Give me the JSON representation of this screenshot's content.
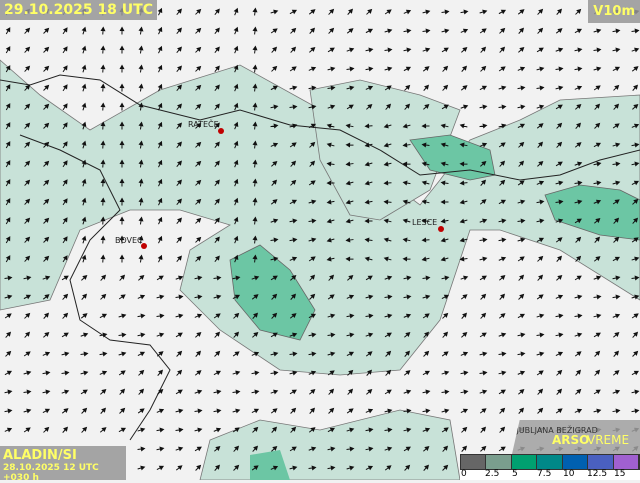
{
  "header": {
    "title": "29.10.2025 18 UTC",
    "variable": "V10m"
  },
  "model": {
    "name": "ALADIN/SI",
    "run": "28.10.2025 12 UTC +030 h"
  },
  "cities": [
    {
      "name": "RATEČE"
    },
    {
      "name": "BOVEC"
    },
    {
      "name": "LESCE"
    }
  ],
  "brand": {
    "station": "LJUBLJANA BEŽIGRAD",
    "arso": "ARSO",
    "vreme": "VREME"
  },
  "legend": {
    "ticks": [
      "0",
      "2.5",
      "5",
      "7.5",
      "10",
      "12.5",
      "15"
    ],
    "colors": [
      "#666666",
      "#7a9e8e",
      "#00a070",
      "#008888",
      "#0060b0",
      "#4a60c0",
      "#a060d0"
    ]
  },
  "colors": {
    "light": "#c8e2d8",
    "medium": "#6cc6a4",
    "strong": "#3aa57e",
    "label_text": "#ffff66"
  }
}
